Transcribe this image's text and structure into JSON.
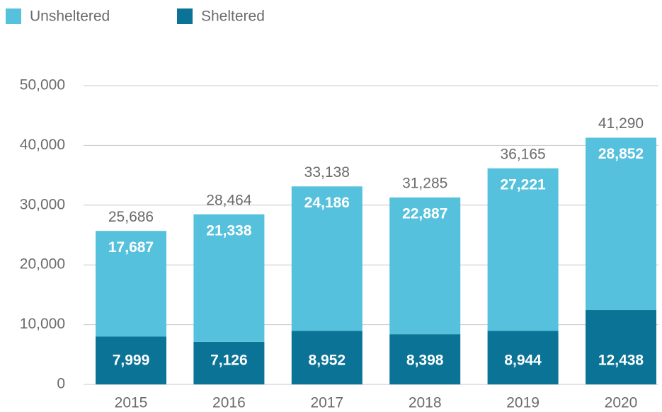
{
  "chart_data": {
    "type": "stacked_bar",
    "categories": [
      "2015",
      "2016",
      "2017",
      "2018",
      "2019",
      "2020"
    ],
    "series": [
      {
        "name": "Sheltered",
        "color": "#0b7396",
        "values": [
          7999,
          7126,
          8952,
          8398,
          8944,
          12438
        ],
        "value_labels": [
          "7,999",
          "7,126",
          "8,952",
          "8,398",
          "8,944",
          "12,438"
        ]
      },
      {
        "name": "Unsheltered",
        "color": "#55c1dc",
        "values": [
          17687,
          21338,
          24186,
          22887,
          27221,
          28852
        ],
        "value_labels": [
          "17,687",
          "21,338",
          "24,186",
          "22,887",
          "27,221",
          "28,852"
        ]
      }
    ],
    "totals": [
      25686,
      28464,
      33138,
      31285,
      36165,
      41290
    ],
    "total_labels": [
      "25,686",
      "28,464",
      "33,138",
      "31,285",
      "36,165",
      "41,290"
    ],
    "legend_order": [
      "Unsheltered",
      "Sheltered"
    ],
    "ylim": [
      0,
      50000
    ],
    "yticks": [
      0,
      {
        "value": 10000,
        "label": "10,000"
      },
      {
        "value": 20000,
        "label": "20,000"
      },
      {
        "value": 30000,
        "label": "30,000"
      },
      {
        "value": 40000,
        "label": "40,000"
      },
      {
        "value": 50000,
        "label": "50,000"
      }
    ],
    "grid": true,
    "legend": "top-left"
  }
}
